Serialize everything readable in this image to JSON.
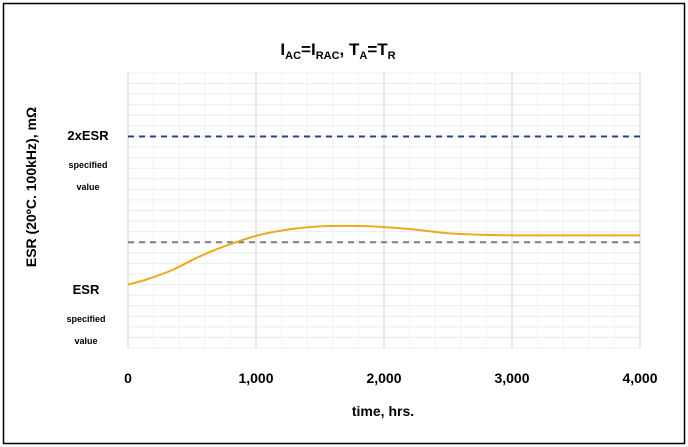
{
  "chart_data": {
    "type": "line",
    "title_parts": {
      "i": "I",
      "ac": "AC",
      "eq1": "=I",
      "rac": "RAC",
      "comma": ", T",
      "a": "A",
      "eq2": "=T",
      "r": "R"
    },
    "xlabel": "time, hrs.",
    "ylabel": "ESR (20ºC. 100kHz), mΩ",
    "xlim": [
      0,
      4000
    ],
    "x_ticks": [
      0,
      1000,
      2000,
      3000,
      4000
    ],
    "x_tick_labels": [
      "0",
      "1,000",
      "2,000",
      "3,000",
      "4,000"
    ],
    "ylim": [
      0,
      2.6
    ],
    "grid": true,
    "annotations": {
      "upper_main": "2xESR",
      "upper_sub1": "specified",
      "upper_sub2": "value",
      "lower_main": "ESR",
      "lower_sub1": "specified",
      "lower_sub2": "value"
    },
    "reference_lines": [
      {
        "label": "2xESR specified value",
        "y": 2.0,
        "color": "#2e3f9a"
      },
      {
        "label": "ESR specified value",
        "y": 1.0,
        "color": "#7f7f7f"
      }
    ],
    "series": [
      {
        "color": "#f0a81c",
        "x": [
          0,
          150,
          350,
          550,
          750,
          1000,
          1250,
          1500,
          1700,
          1900,
          2200,
          2500,
          2800,
          3100,
          3500,
          4000
        ],
        "y": [
          0.6,
          0.65,
          0.74,
          0.86,
          0.96,
          1.06,
          1.12,
          1.15,
          1.155,
          1.15,
          1.125,
          1.085,
          1.07,
          1.065,
          1.065,
          1.065
        ]
      }
    ]
  }
}
